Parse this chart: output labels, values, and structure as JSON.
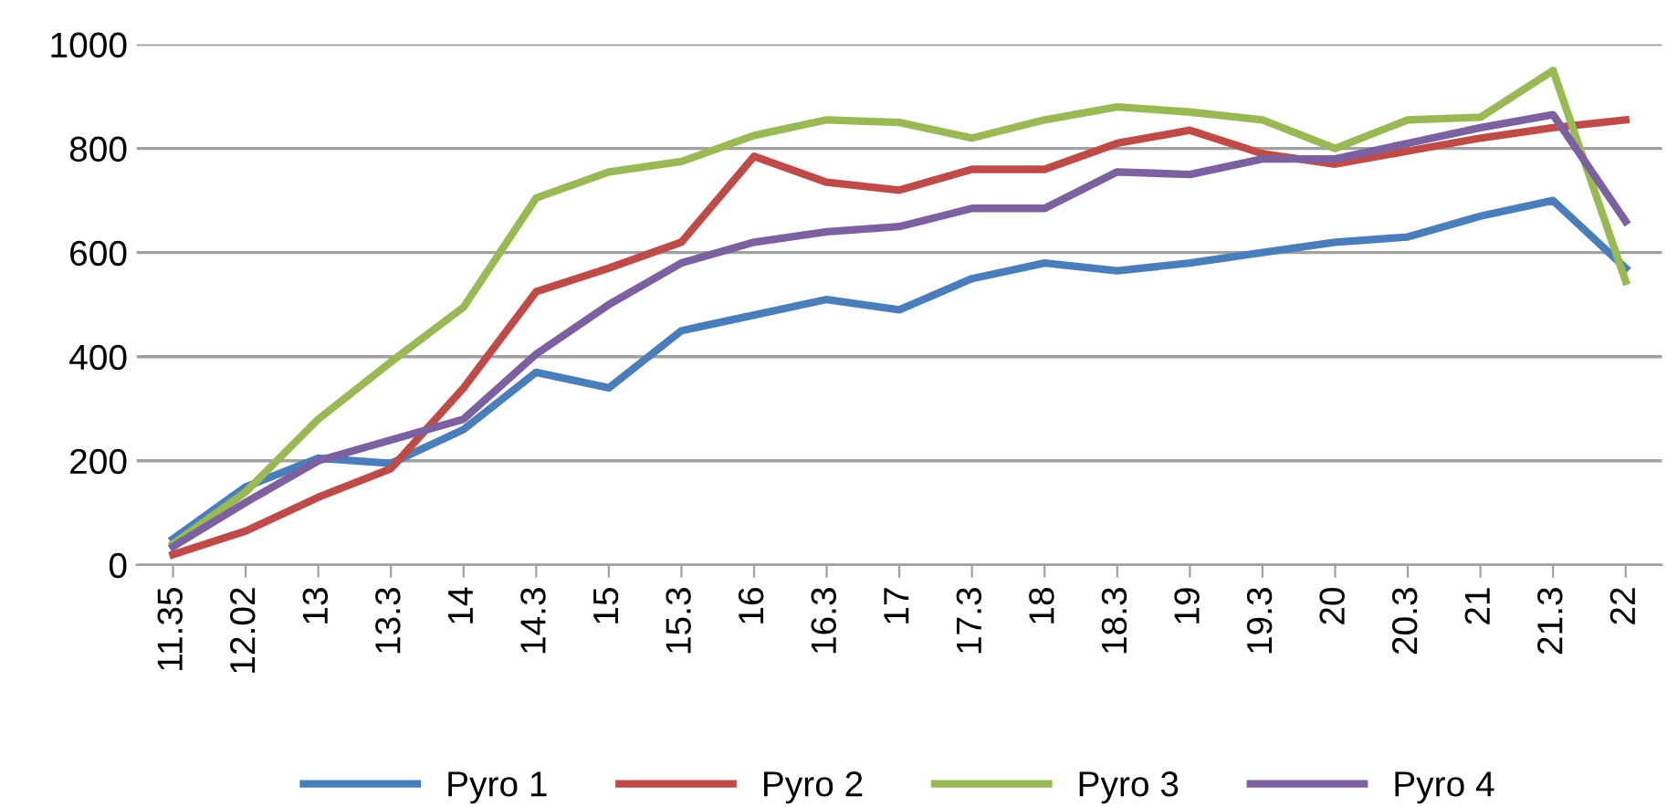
{
  "chart_data": {
    "type": "line",
    "categories": [
      "11.35",
      "12.02",
      "13",
      "13.3",
      "14",
      "14.3",
      "15",
      "15.3",
      "16",
      "16.3",
      "17",
      "17.3",
      "18",
      "18.3",
      "19",
      "19.3",
      "20",
      "20.3",
      "21",
      "21.3",
      "22"
    ],
    "series": [
      {
        "name": "Pyro 1",
        "color": "#4a7ebb",
        "values": [
          50,
          150,
          205,
          195,
          260,
          370,
          340,
          450,
          480,
          510,
          490,
          550,
          580,
          565,
          580,
          600,
          620,
          630,
          670,
          700,
          570
        ]
      },
      {
        "name": "Pyro 2",
        "color": "#be4b48",
        "values": [
          20,
          65,
          130,
          185,
          340,
          525,
          570,
          620,
          785,
          735,
          720,
          760,
          760,
          810,
          835,
          790,
          770,
          795,
          820,
          840,
          855
        ]
      },
      {
        "name": "Pyro 3",
        "color": "#98b954",
        "values": [
          40,
          140,
          280,
          390,
          495,
          705,
          755,
          775,
          825,
          855,
          850,
          820,
          855,
          880,
          870,
          855,
          800,
          855,
          860,
          950,
          545
        ]
      },
      {
        "name": "Pyro 4",
        "color": "#7d60a0",
        "values": [
          35,
          120,
          200,
          240,
          280,
          405,
          500,
          580,
          620,
          640,
          650,
          685,
          685,
          755,
          750,
          780,
          780,
          810,
          840,
          865,
          660
        ]
      }
    ],
    "ylim": [
      0,
      1000
    ],
    "yticks": [
      0,
      200,
      400,
      600,
      800,
      1000
    ],
    "grid": "y",
    "legend": "bottom",
    "marker": "none",
    "line_style": "solid"
  }
}
